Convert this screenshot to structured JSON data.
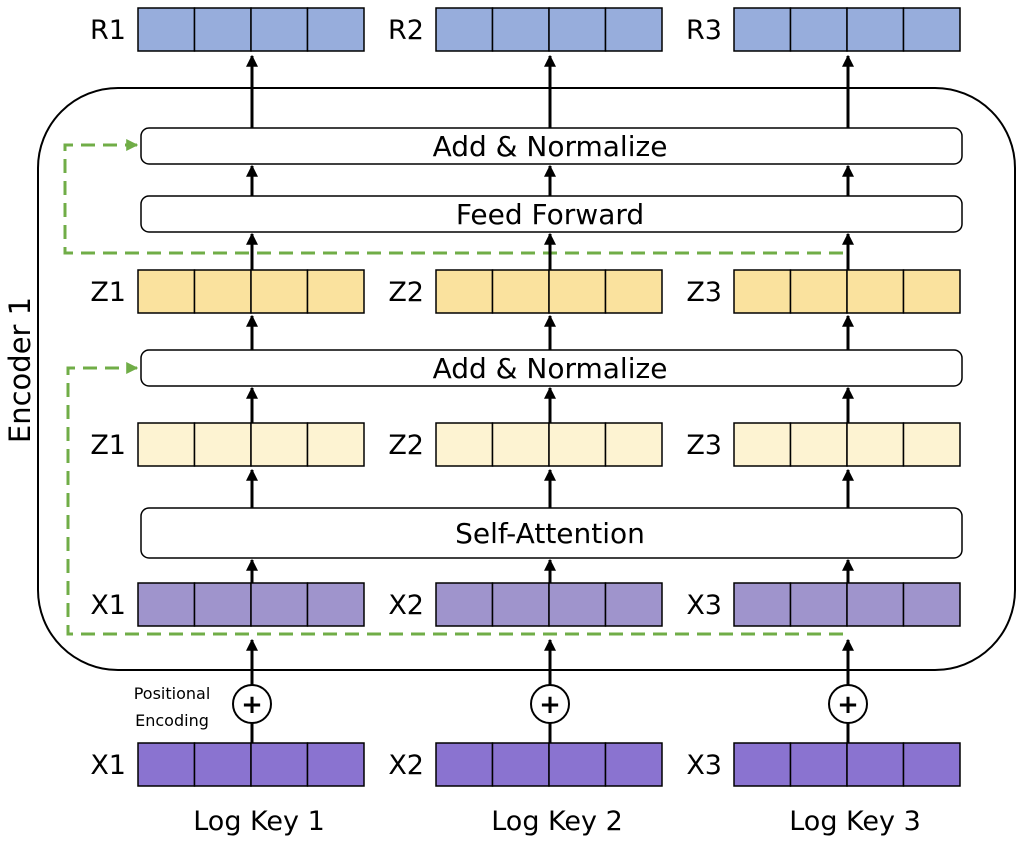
{
  "encoder_label": "Encoder 1",
  "positional_encoding": [
    "Positional",
    "Encoding"
  ],
  "plus_symbol": "+",
  "colors": {
    "output": "#97ADDC",
    "ffn_vector": "#FAE29E",
    "attn_vector": "#FDF3D2",
    "hidden_input": "#9F94CC",
    "input": "#8A73D0",
    "residual": "#70AD47",
    "stroke": "#000000"
  },
  "layers": {
    "add_norm_top": "Add & Normalize",
    "feed_forward": "Feed Forward",
    "add_norm_bottom": "Add & Normalize",
    "self_attention": "Self-Attention"
  },
  "columns": [
    {
      "output": "R1",
      "ffn_vector": "Z1",
      "attn_vector": "Z1",
      "hidden_input": "X1",
      "input": "X1",
      "key": "Log Key 1"
    },
    {
      "output": "R2",
      "ffn_vector": "Z2",
      "attn_vector": "Z2",
      "hidden_input": "X2",
      "input": "X2",
      "key": "Log Key 2"
    },
    {
      "output": "R3",
      "ffn_vector": "Z3",
      "attn_vector": "Z3",
      "hidden_input": "X3",
      "input": "X3",
      "key": "Log Key 3"
    }
  ]
}
